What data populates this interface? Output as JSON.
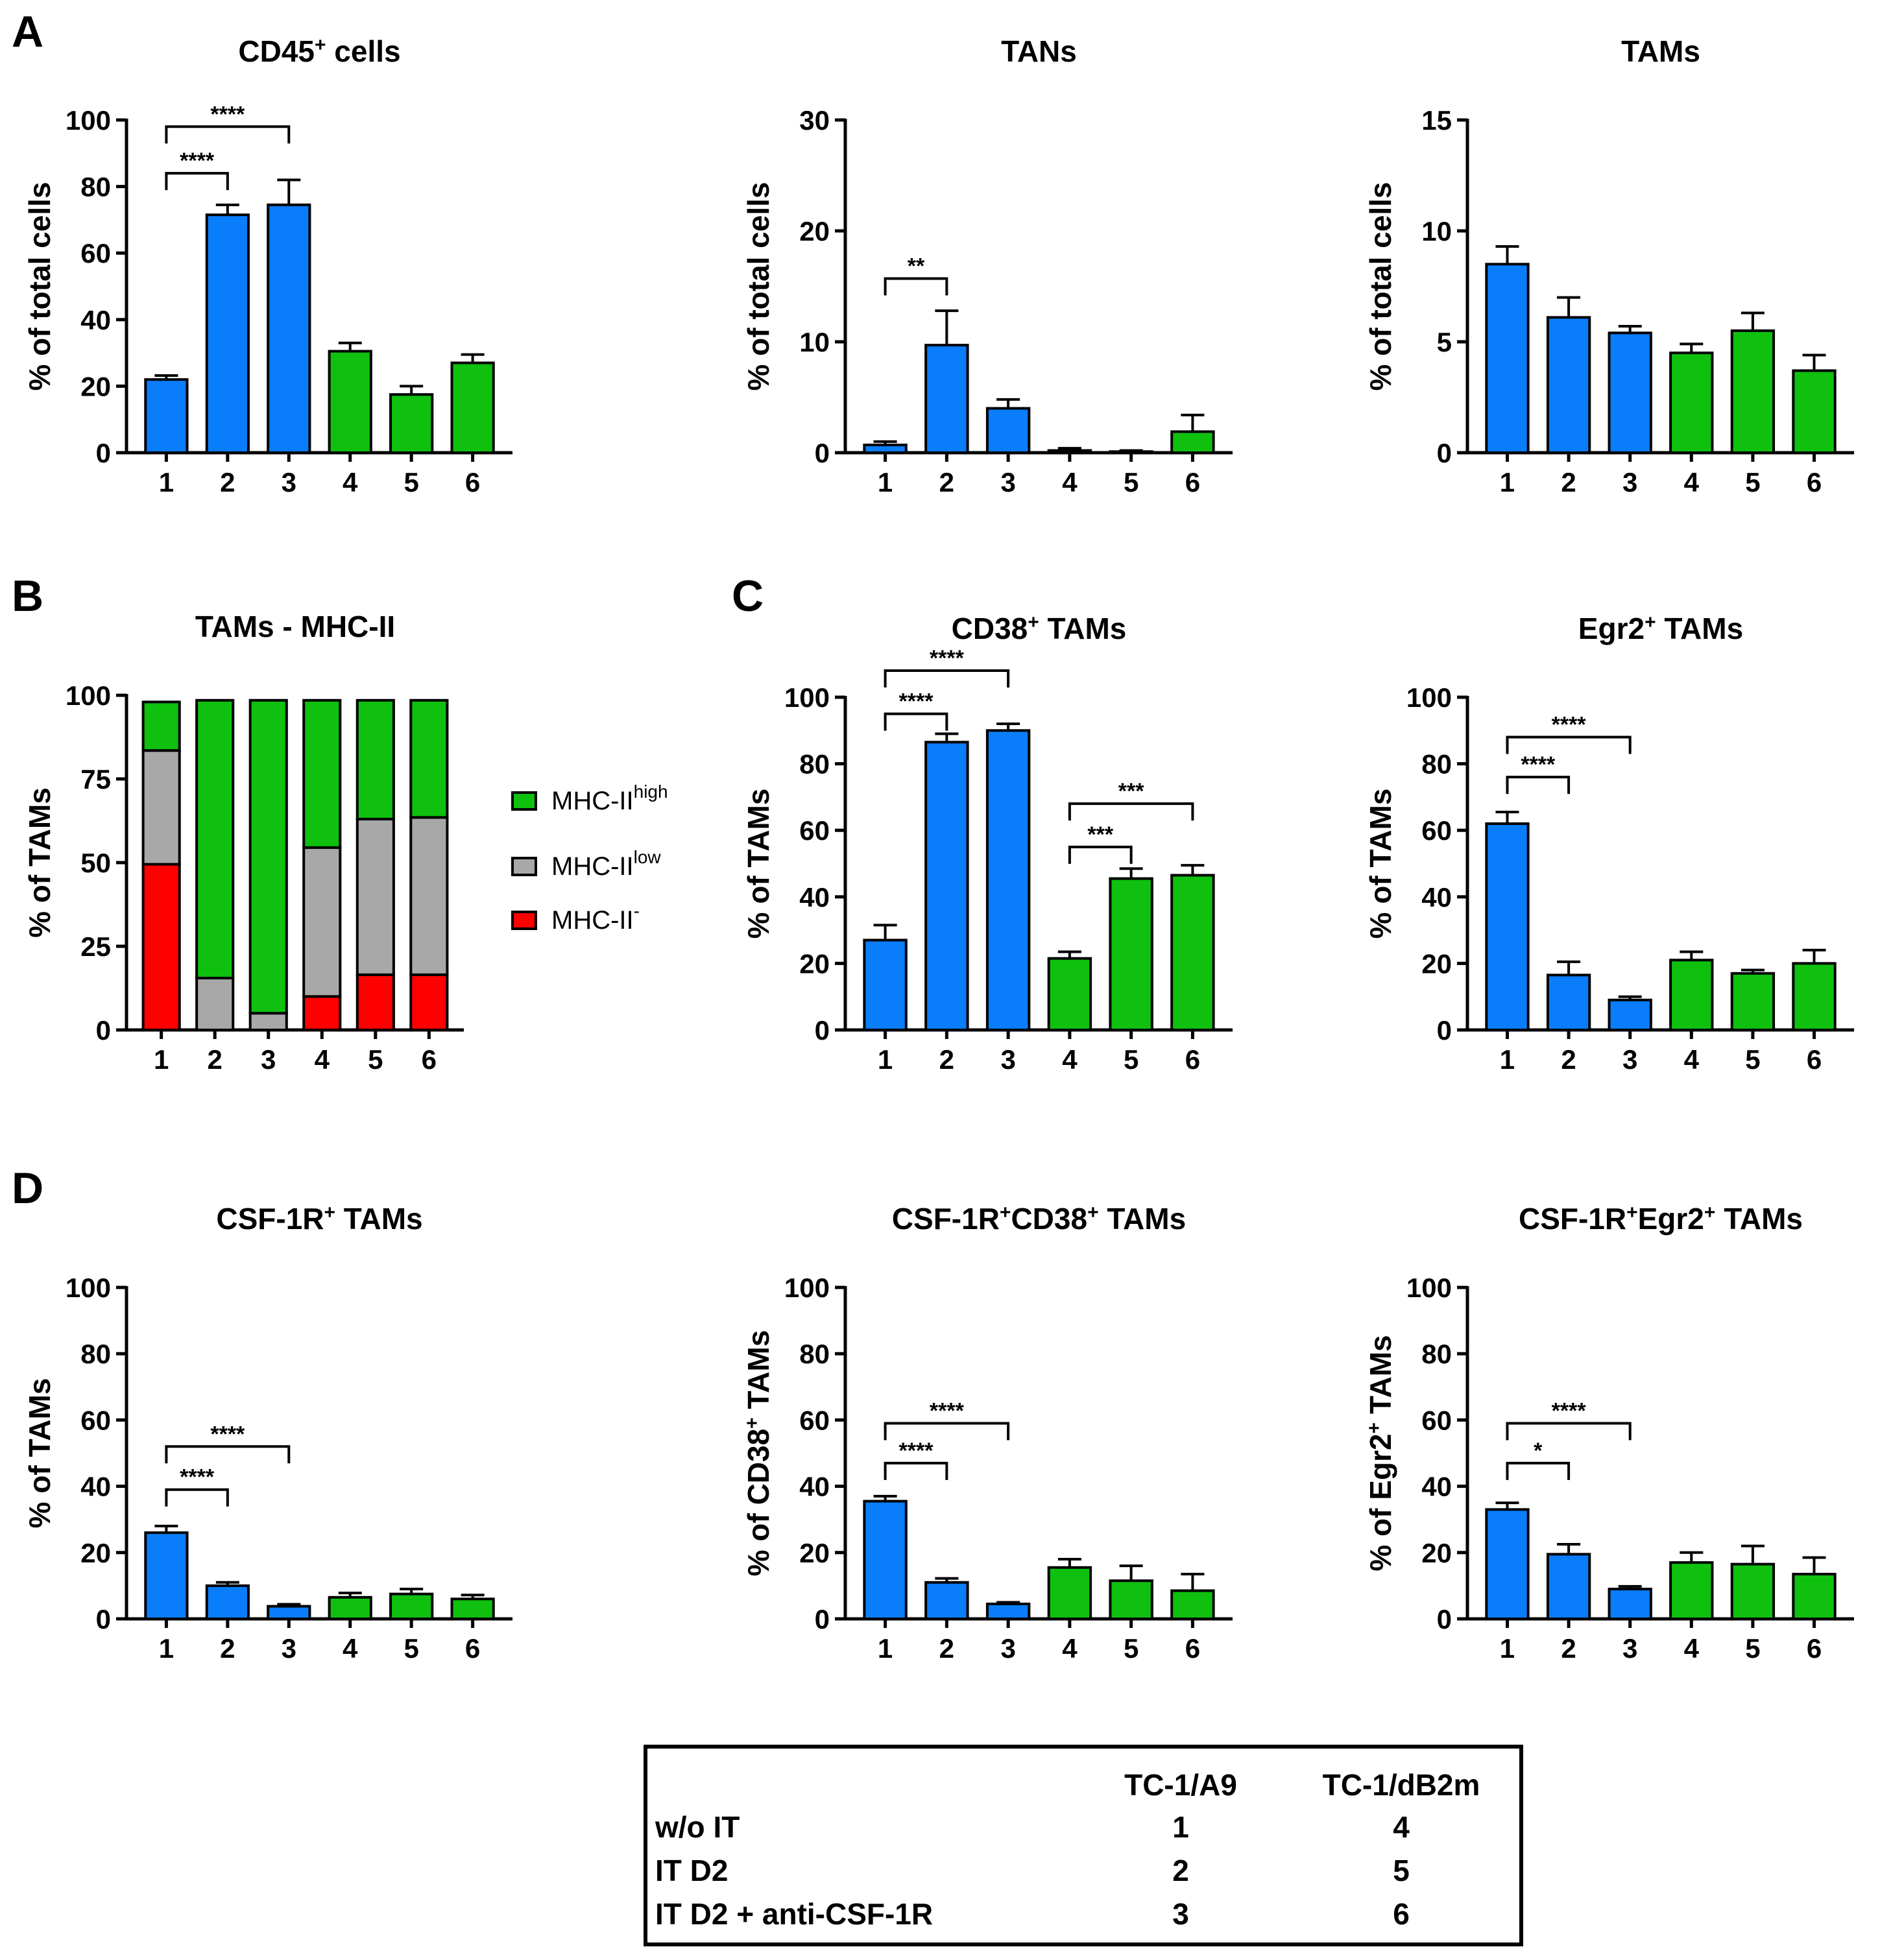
{
  "colors": {
    "tc1_a9": "#0a7dfb",
    "tc1_db2m": "#0fc00f",
    "mhc_high": "#0fc00f",
    "mhc_low": "#a8a8a8",
    "mhc_neg": "#ff0000",
    "axis": "#000000"
  },
  "chart_data": [
    {
      "id": "A1",
      "panel": "A",
      "type": "bar",
      "title": "CD45",
      "title_sup": "+",
      "title_rest": " cells",
      "ylabel": "% of total cells",
      "ylabel_sup": "",
      "ylabel_rest": "",
      "categories": [
        "1",
        "2",
        "3",
        "4",
        "5",
        "6"
      ],
      "values": [
        22,
        71.5,
        74.5,
        30.5,
        17.5,
        27
      ],
      "errors": [
        1.2,
        3,
        7.5,
        2.5,
        2.5,
        2.5
      ],
      "groups": [
        "tc1_a9",
        "tc1_a9",
        "tc1_a9",
        "tc1_db2m",
        "tc1_db2m",
        "tc1_db2m"
      ],
      "ylim": [
        0,
        100
      ],
      "yticks": [
        0,
        20,
        40,
        60,
        80,
        100
      ],
      "yticklabels": [
        "0",
        "20",
        "40",
        "60",
        "80",
        "100"
      ],
      "significance": [
        {
          "from": 1,
          "to": 2,
          "y": 84,
          "label": "****"
        },
        {
          "from": 1,
          "to": 3,
          "y": 98,
          "label": "****"
        }
      ]
    },
    {
      "id": "A2",
      "panel": "",
      "type": "bar",
      "title": "TANs",
      "title_sup": "",
      "title_rest": "",
      "ylabel": "% of total cells",
      "ylabel_sup": "",
      "ylabel_rest": "",
      "categories": [
        "1",
        "2",
        "3",
        "4",
        "5",
        "6"
      ],
      "values": [
        0.7,
        9.7,
        4,
        0.2,
        0.1,
        1.9
      ],
      "errors": [
        0.3,
        3.1,
        0.8,
        0.2,
        0.1,
        1.5
      ],
      "groups": [
        "tc1_a9",
        "tc1_a9",
        "tc1_a9",
        "tc1_db2m",
        "tc1_db2m",
        "tc1_db2m"
      ],
      "ylim": [
        0,
        30
      ],
      "yticks": [
        0,
        10,
        20,
        30
      ],
      "yticklabels": [
        "0",
        "10",
        "20",
        "30"
      ],
      "significance": [
        {
          "from": 1,
          "to": 2,
          "y": 15.7,
          "label": "**"
        }
      ]
    },
    {
      "id": "A3",
      "panel": "",
      "type": "bar",
      "title": "TAMs",
      "title_sup": "",
      "title_rest": "",
      "ylabel": "% of total cells",
      "ylabel_sup": "",
      "ylabel_rest": "",
      "categories": [
        "1",
        "2",
        "3",
        "4",
        "5",
        "6"
      ],
      "values": [
        8.5,
        6.1,
        5.4,
        4.5,
        5.5,
        3.7
      ],
      "errors": [
        0.8,
        0.9,
        0.3,
        0.4,
        0.8,
        0.7
      ],
      "groups": [
        "tc1_a9",
        "tc1_a9",
        "tc1_a9",
        "tc1_db2m",
        "tc1_db2m",
        "tc1_db2m"
      ],
      "ylim": [
        0,
        15
      ],
      "yticks": [
        0,
        5,
        10,
        15
      ],
      "yticklabels": [
        "0",
        "5",
        "10",
        "15"
      ],
      "significance": []
    },
    {
      "id": "B",
      "panel": "B",
      "type": "stacked-bar",
      "title": "TAMs - MHC-II",
      "title_sup": "",
      "title_rest": "",
      "ylabel": "% of TAMs",
      "ylabel_sup": "",
      "ylabel_rest": "",
      "categories": [
        "1",
        "2",
        "3",
        "4",
        "5",
        "6"
      ],
      "series": [
        {
          "name": "MHC-II-",
          "key": "mhc_neg",
          "values": [
            49.5,
            0,
            0,
            10,
            16.5,
            16.5
          ]
        },
        {
          "name": "MHC-IIlow",
          "key": "mhc_low",
          "values": [
            34,
            15.5,
            5,
            44.5,
            46.5,
            47
          ]
        },
        {
          "name": "MHC-IIhigh",
          "key": "mhc_high",
          "values": [
            14.5,
            83,
            93.5,
            44,
            35.5,
            35
          ]
        }
      ],
      "ylim": [
        0,
        100
      ],
      "yticks": [
        0,
        25,
        50,
        75,
        100
      ],
      "yticklabels": [
        "0",
        "25",
        "50",
        "75",
        "100"
      ],
      "legend": [
        {
          "key": "mhc_high",
          "base": "MHC-II",
          "sup": "high"
        },
        {
          "key": "mhc_low",
          "base": "MHC-II",
          "sup": "low"
        },
        {
          "key": "mhc_neg",
          "base": "MHC-II",
          "sup": "-"
        }
      ]
    },
    {
      "id": "C1",
      "panel": "C",
      "type": "bar",
      "title": "CD38",
      "title_sup": "+",
      "title_rest": " TAMs",
      "ylabel": "% of TAMs",
      "ylabel_sup": "",
      "ylabel_rest": "",
      "categories": [
        "1",
        "2",
        "3",
        "4",
        "5",
        "6"
      ],
      "values": [
        27,
        86.5,
        90,
        21.5,
        45.5,
        46.5
      ],
      "errors": [
        4.5,
        2.5,
        2,
        2,
        3,
        3
      ],
      "groups": [
        "tc1_a9",
        "tc1_a9",
        "tc1_a9",
        "tc1_db2m",
        "tc1_db2m",
        "tc1_db2m"
      ],
      "ylim": [
        0,
        100
      ],
      "yticks": [
        0,
        20,
        40,
        60,
        80,
        100
      ],
      "yticklabels": [
        "0",
        "20",
        "40",
        "60",
        "80",
        "100"
      ],
      "significance": [
        {
          "from": 1,
          "to": 2,
          "y": 95,
          "label": "****"
        },
        {
          "from": 1,
          "to": 3,
          "y": 108,
          "label": "****"
        },
        {
          "from": 4,
          "to": 5,
          "y": 55,
          "label": "***"
        },
        {
          "from": 4,
          "to": 6,
          "y": 68,
          "label": "***"
        }
      ]
    },
    {
      "id": "C2",
      "panel": "",
      "type": "bar",
      "title": "Egr2",
      "title_sup": "+",
      "title_rest": " TAMs",
      "ylabel": "% of TAMs",
      "ylabel_sup": "",
      "ylabel_rest": "",
      "categories": [
        "1",
        "2",
        "3",
        "4",
        "5",
        "6"
      ],
      "values": [
        62,
        16.5,
        9,
        21,
        17,
        20
      ],
      "errors": [
        3.5,
        4,
        1,
        2.5,
        1,
        4
      ],
      "groups": [
        "tc1_a9",
        "tc1_a9",
        "tc1_a9",
        "tc1_db2m",
        "tc1_db2m",
        "tc1_db2m"
      ],
      "ylim": [
        0,
        100
      ],
      "yticks": [
        0,
        20,
        40,
        60,
        80,
        100
      ],
      "yticklabels": [
        "0",
        "20",
        "40",
        "60",
        "80",
        "100"
      ],
      "significance": [
        {
          "from": 1,
          "to": 2,
          "y": 76,
          "label": "****"
        },
        {
          "from": 1,
          "to": 3,
          "y": 88,
          "label": "****"
        }
      ]
    },
    {
      "id": "D1",
      "panel": "D",
      "type": "bar",
      "title": "CSF-1R",
      "title_sup": "+",
      "title_rest": " TAMs",
      "ylabel": "% of TAMs",
      "ylabel_sup": "",
      "ylabel_rest": "",
      "categories": [
        "1",
        "2",
        "3",
        "4",
        "5",
        "6"
      ],
      "values": [
        26,
        10,
        3.8,
        6.5,
        7.5,
        6
      ],
      "errors": [
        2,
        1,
        0.6,
        1.3,
        1.5,
        1.2
      ],
      "groups": [
        "tc1_a9",
        "tc1_a9",
        "tc1_a9",
        "tc1_db2m",
        "tc1_db2m",
        "tc1_db2m"
      ],
      "ylim": [
        0,
        100
      ],
      "yticks": [
        0,
        20,
        40,
        60,
        80,
        100
      ],
      "yticklabels": [
        "0",
        "20",
        "40",
        "60",
        "80",
        "100"
      ],
      "significance": [
        {
          "from": 1,
          "to": 2,
          "y": 39,
          "label": "****"
        },
        {
          "from": 1,
          "to": 3,
          "y": 52,
          "label": "****"
        }
      ]
    },
    {
      "id": "D2",
      "panel": "",
      "type": "bar",
      "title": "CSF-1R",
      "title_sup": "+",
      "title_rest": "CD38",
      "title_sup2": "+",
      "title_rest2": " TAMs",
      "ylabel": "% of CD38",
      "ylabel_sup": "+",
      "ylabel_rest": " TAMs",
      "categories": [
        "1",
        "2",
        "3",
        "4",
        "5",
        "6"
      ],
      "values": [
        35.5,
        11,
        4.5,
        15.5,
        11.5,
        8.5
      ],
      "errors": [
        1.5,
        1.2,
        0.5,
        2.5,
        4.5,
        5
      ],
      "groups": [
        "tc1_a9",
        "tc1_a9",
        "tc1_a9",
        "tc1_db2m",
        "tc1_db2m",
        "tc1_db2m"
      ],
      "ylim": [
        0,
        100
      ],
      "yticks": [
        0,
        20,
        40,
        60,
        80,
        100
      ],
      "yticklabels": [
        "0",
        "20",
        "40",
        "60",
        "80",
        "100"
      ],
      "significance": [
        {
          "from": 1,
          "to": 2,
          "y": 47,
          "label": "****"
        },
        {
          "from": 1,
          "to": 3,
          "y": 59,
          "label": "****"
        }
      ]
    },
    {
      "id": "D3",
      "panel": "",
      "type": "bar",
      "title": "CSF-1R",
      "title_sup": "+",
      "title_rest": "Egr2",
      "title_sup2": "+",
      "title_rest2": " TAMs",
      "ylabel": "% of Egr2",
      "ylabel_sup": "+",
      "ylabel_rest": " TAMs",
      "categories": [
        "1",
        "2",
        "3",
        "4",
        "5",
        "6"
      ],
      "values": [
        33,
        19.5,
        9,
        17,
        16.5,
        13.5
      ],
      "errors": [
        2,
        3,
        0.8,
        3,
        5.5,
        5
      ],
      "groups": [
        "tc1_a9",
        "tc1_a9",
        "tc1_a9",
        "tc1_db2m",
        "tc1_db2m",
        "tc1_db2m"
      ],
      "ylim": [
        0,
        100
      ],
      "yticks": [
        0,
        20,
        40,
        60,
        80,
        100
      ],
      "yticklabels": [
        "0",
        "20",
        "40",
        "60",
        "80",
        "100"
      ],
      "significance": [
        {
          "from": 1,
          "to": 2,
          "y": 47,
          "label": "*"
        },
        {
          "from": 1,
          "to": 3,
          "y": 59,
          "label": "****"
        }
      ]
    }
  ],
  "group_table": {
    "columns": [
      "TC-1/A9",
      "TC-1/dB2m"
    ],
    "rows": [
      {
        "label": "w/o IT",
        "values": [
          "1",
          "4"
        ]
      },
      {
        "label": "IT D2",
        "values": [
          "2",
          "5"
        ]
      },
      {
        "label": "IT D2 + anti-CSF-1R",
        "values": [
          "3",
          "6"
        ]
      }
    ]
  }
}
